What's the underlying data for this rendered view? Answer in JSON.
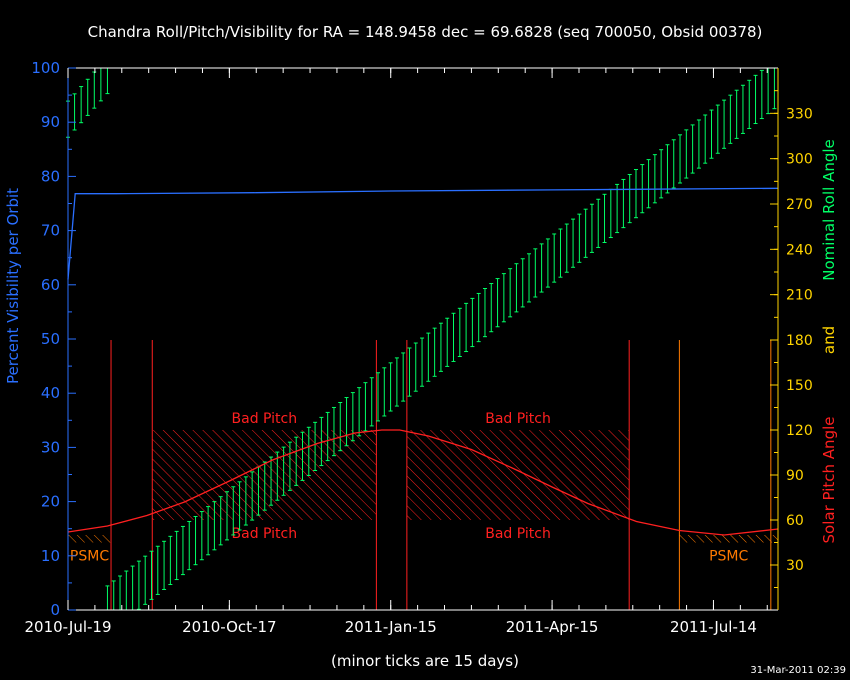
{
  "title": "Chandra Roll/Pitch/Visibility for RA = 148.9458 dec = 69.6828 (seq 700050, Obsid 00378)",
  "footer_note": "(minor ticks are 15 days)",
  "timestamp": "31-Mar-2011 02:39",
  "colors": {
    "background": "#000000",
    "visibility": "#2a6fff",
    "roll": "#00ff66",
    "pitch": "#ff2020",
    "psmc": "#ff7a00",
    "right_ticks": "#ffd400",
    "frame": "#ffffff"
  },
  "chart_data": {
    "type": "line",
    "x_tick_labels": [
      "2010-Jul-19",
      "2010-Oct-17",
      "2011-Jan-15",
      "2011-Apr-15",
      "2011-Jul-14"
    ],
    "x_tick_dates": [
      "2010-07-19",
      "2010-10-17",
      "2011-01-15",
      "2011-04-15",
      "2011-07-14"
    ],
    "xlim": [
      "2010-07-19",
      "2011-08-19"
    ],
    "left_axis": {
      "label": "Percent Visibility per Orbit",
      "ylim": [
        0,
        100
      ],
      "ticks": [
        "0",
        "10",
        "20",
        "30",
        "40",
        "50",
        "60",
        "70",
        "80",
        "90",
        "100"
      ]
    },
    "right_upper_axis": {
      "label": "Nominal Roll Angle",
      "ylim": [
        180,
        360
      ],
      "ticks": [
        "210",
        "240",
        "270",
        "300",
        "330"
      ]
    },
    "right_lower_axis": {
      "label": "Solar Pitch Angle",
      "ylim": [
        0,
        180
      ],
      "ticks": [
        "30",
        "60",
        "90",
        "120",
        "150",
        "180"
      ]
    },
    "right_joint_label": "and",
    "series": [
      {
        "name": "Percent Visibility per Orbit",
        "axis": "left",
        "points": [
          [
            "2010-07-19",
            61
          ],
          [
            "2010-07-23",
            76.8
          ],
          [
            "2010-08-15",
            76.8
          ],
          [
            "2010-11-01",
            77.0
          ],
          [
            "2011-01-15",
            77.3
          ],
          [
            "2011-04-15",
            77.5
          ],
          [
            "2011-08-19",
            77.8
          ]
        ]
      },
      {
        "name": "Solar Pitch Angle",
        "axis": "right_lower",
        "points": [
          [
            "2010-07-19",
            52
          ],
          [
            "2010-08-10",
            56
          ],
          [
            "2010-09-01",
            63
          ],
          [
            "2010-09-22",
            72
          ],
          [
            "2010-10-17",
            86
          ],
          [
            "2010-11-10",
            100
          ],
          [
            "2010-12-05",
            111
          ],
          [
            "2010-12-26",
            118
          ],
          [
            "2011-01-10",
            120
          ],
          [
            "2011-01-20",
            120
          ],
          [
            "2011-02-05",
            116
          ],
          [
            "2011-03-01",
            107
          ],
          [
            "2011-03-25",
            94
          ],
          [
            "2011-04-15",
            82
          ],
          [
            "2011-05-05",
            71
          ],
          [
            "2011-06-01",
            59
          ],
          [
            "2011-06-25",
            53
          ],
          [
            "2011-07-20",
            50
          ],
          [
            "2011-08-19",
            54
          ]
        ]
      },
      {
        "name": "Nominal Roll Angle",
        "axis": "right_upper",
        "style": "error-bars",
        "segments": [
          {
            "start": "2010-07-19",
            "end": "2010-08-10",
            "roll_start": 326,
            "roll_end": 355,
            "spread": 12
          },
          {
            "start": "2010-08-10",
            "end": "2011-08-17",
            "roll_start": 0,
            "roll_end": 349,
            "spread": 16
          }
        ]
      }
    ],
    "regions": [
      {
        "label": "Bad Pitch",
        "start": "2010-09-04",
        "end": "2011-01-07",
        "pitch_min": 60,
        "pitch_max": 120,
        "upper_label": "Bad Pitch",
        "lower_label": "Bad Pitch"
      },
      {
        "label": "Bad Pitch",
        "start": "2011-01-24",
        "end": "2011-05-28",
        "pitch_min": 60,
        "pitch_max": 120,
        "upper_label": "Bad Pitch",
        "lower_label": "Bad Pitch"
      },
      {
        "label": "PSMC",
        "start": "2010-07-19",
        "end": "2010-08-12",
        "pitch_min": 45,
        "pitch_max": 50
      },
      {
        "label": "PSMC",
        "start": "2011-06-25",
        "end": "2011-08-19",
        "pitch_min": 45,
        "pitch_max": 50
      }
    ],
    "vertical_markers": [
      {
        "date": "2010-08-12",
        "color_key": "pitch"
      },
      {
        "date": "2010-09-04",
        "color_key": "pitch"
      },
      {
        "date": "2011-01-07",
        "color_key": "pitch"
      },
      {
        "date": "2011-01-24",
        "color_key": "pitch"
      },
      {
        "date": "2011-05-28",
        "color_key": "pitch"
      },
      {
        "date": "2011-06-25",
        "color_key": "psmc"
      },
      {
        "date": "2011-08-15",
        "color_key": "psmc"
      }
    ],
    "grid": false,
    "legend": "none"
  }
}
